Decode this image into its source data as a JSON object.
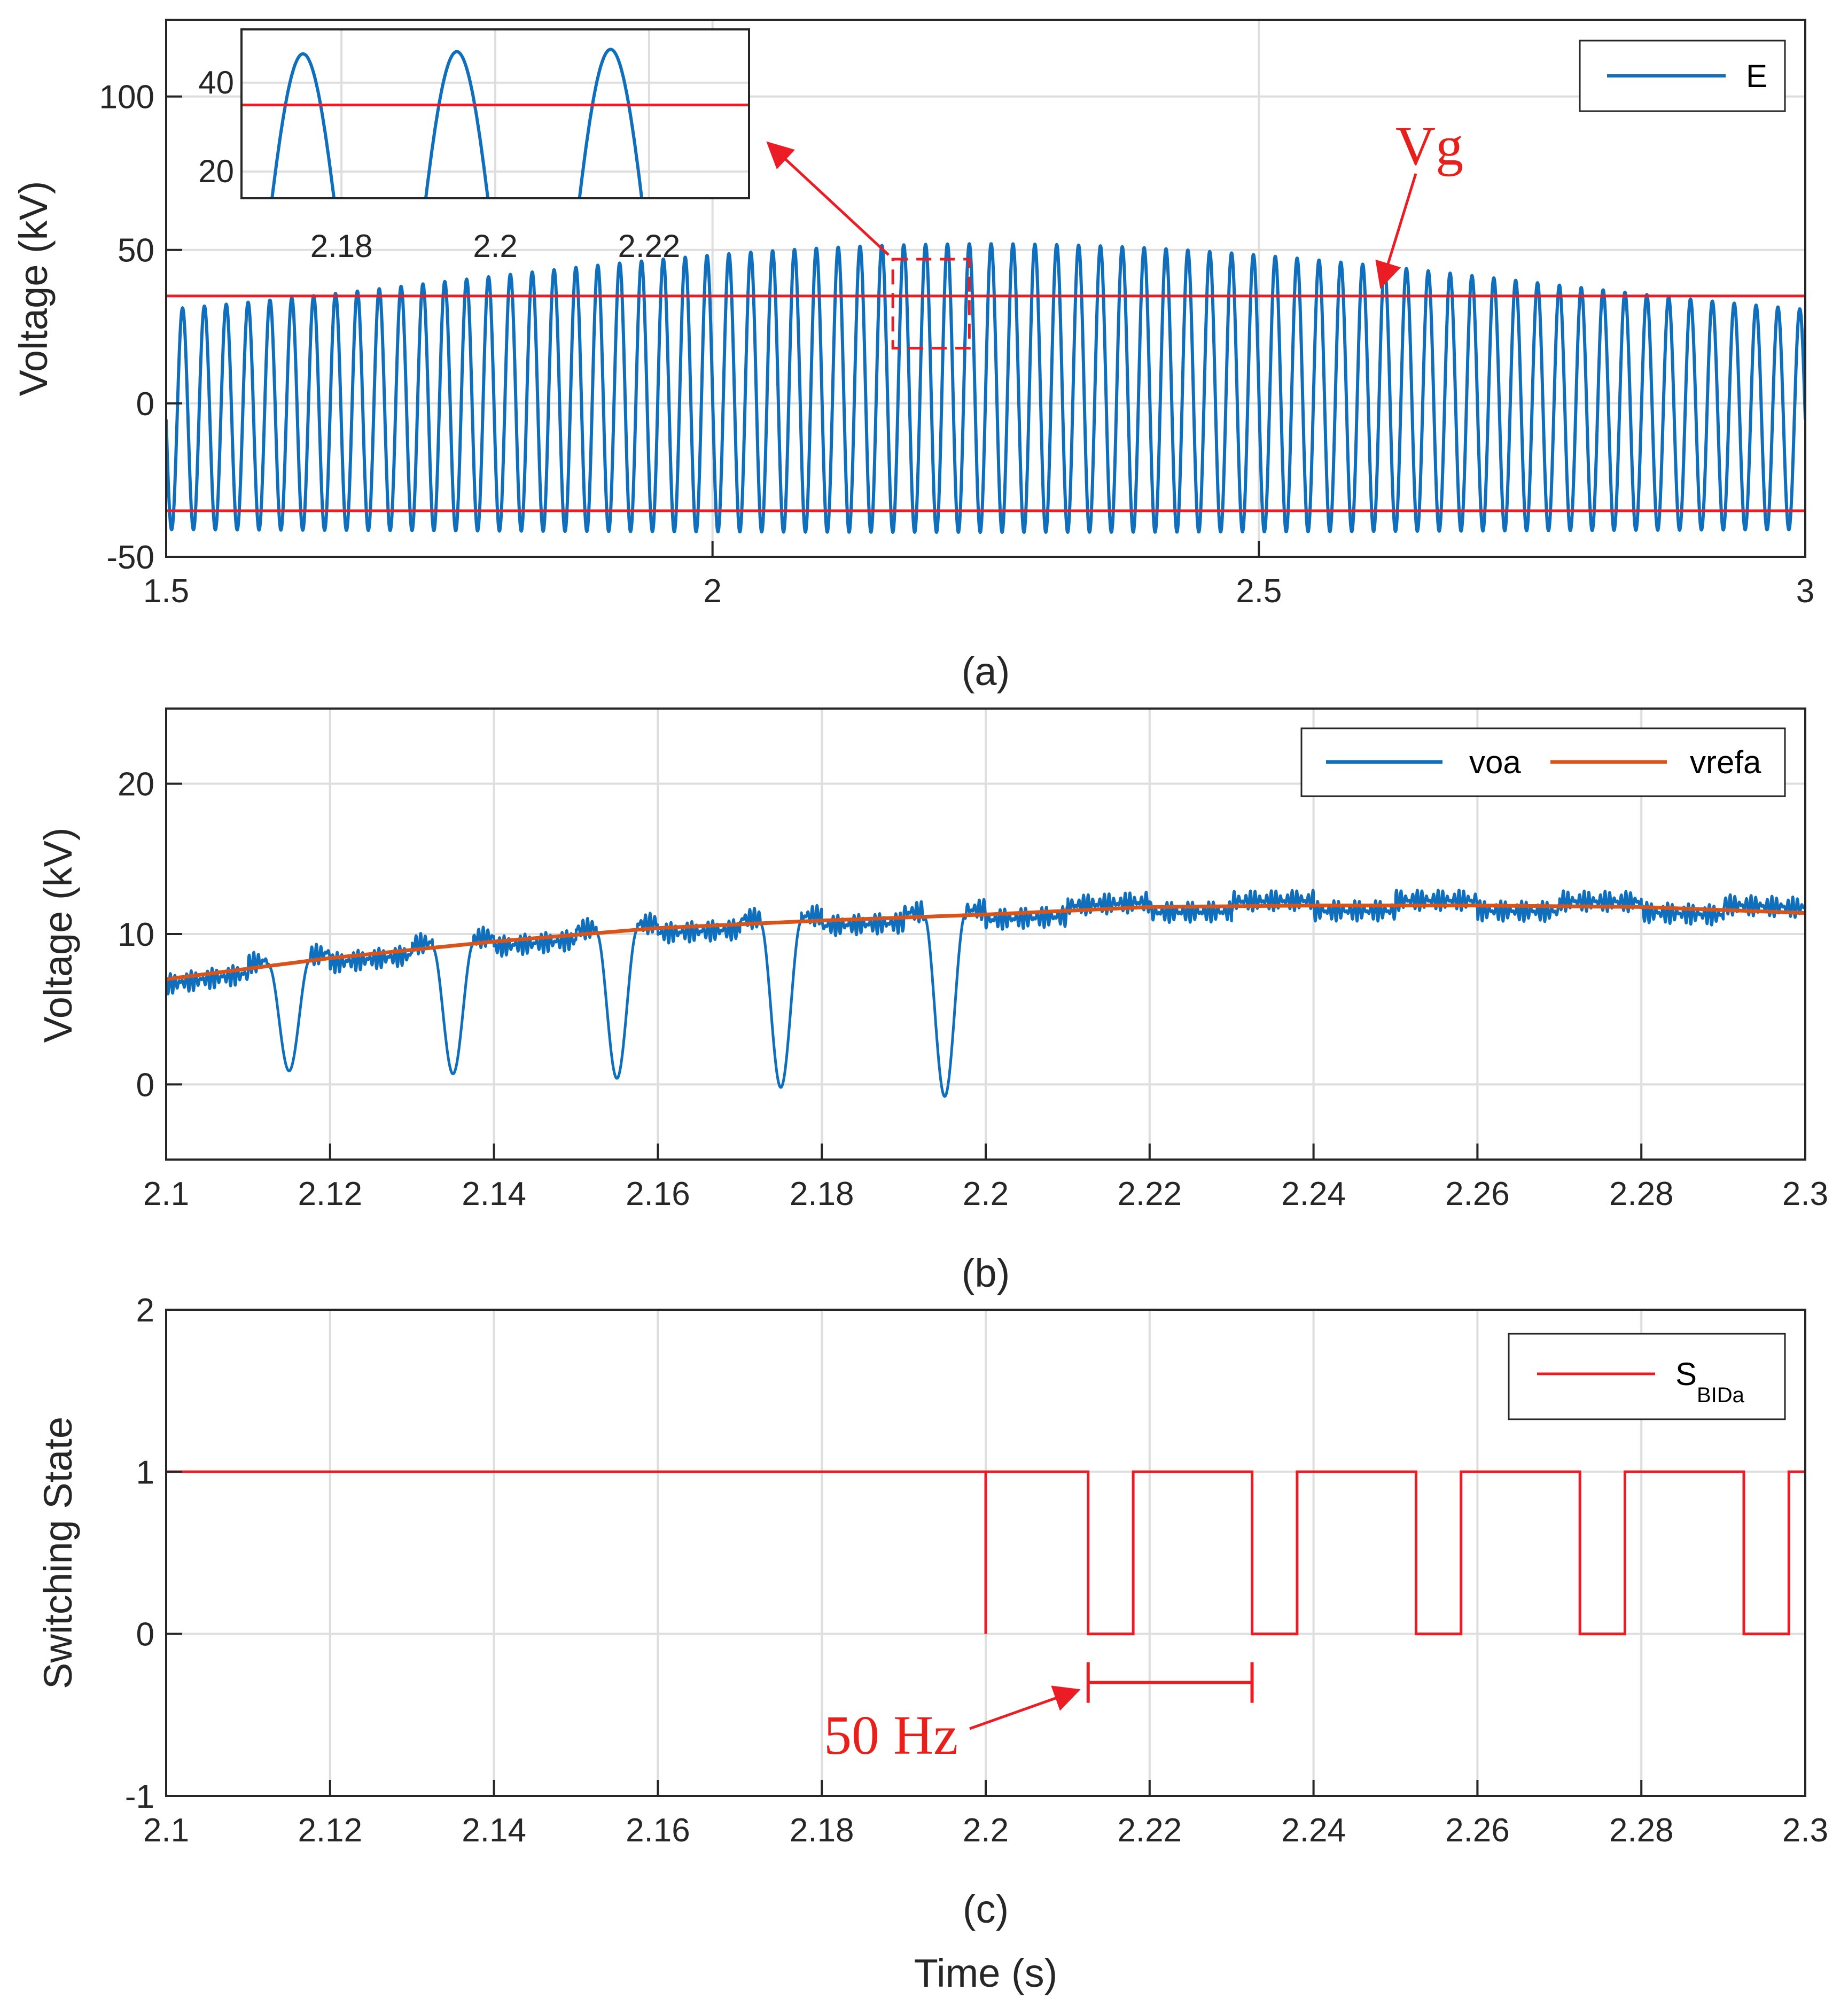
{
  "colors": {
    "blue": "#0f6fbd",
    "orange": "#d9541a",
    "red": "#ec1c24",
    "grid": "#dedede",
    "axis": "#262626"
  },
  "chart_data": [
    {
      "id": "a",
      "type": "line",
      "caption": "(a)",
      "ylabel": "Voltage (kV)",
      "xlim": [
        1.5,
        3
      ],
      "ylim": [
        -50,
        125
      ],
      "xticks": [
        1.5,
        2,
        2.5,
        3
      ],
      "xticklabels": [
        "1.5",
        "2",
        "2.5",
        "3"
      ],
      "yticks": [
        -50,
        0,
        50,
        100
      ],
      "yticklabels": [
        "-50",
        "0",
        "50",
        "100"
      ],
      "series": [
        {
          "name": "E",
          "color": "#0f6fbd",
          "description": "50 Hz oscillation, amplitude modulated 0.5 Hz",
          "frequency_hz": 50,
          "amplitude_kV_min": 34,
          "amplitude_kV_max": 47,
          "envelope_peak_time": 2.25,
          "offset_kV_min": -7,
          "offset_kV_max": 5
        },
        {
          "name": "Vg",
          "color": "#ec1c24",
          "levels_kV": [
            35,
            -35
          ]
        }
      ],
      "legend": [
        "E"
      ],
      "legend_position": "top-right",
      "annotations": {
        "vg_label": "Vg"
      },
      "inset": {
        "xlim": [
          2.167,
          2.233
        ],
        "ylim": [
          14,
          52
        ],
        "xticks": [
          2.18,
          2.2,
          2.22
        ],
        "xticklabels": [
          "2.18",
          "2.2",
          "2.22"
        ],
        "yticks": [
          20,
          40
        ],
        "yticklabels": [
          "20",
          "40"
        ],
        "peak_times": [
          2.175,
          2.195,
          2.215
        ],
        "peak_values": [
          46.5,
          47,
          47.5
        ],
        "red_level": 35
      },
      "zoom_box_xrange": [
        2.165,
        2.235
      ],
      "zoom_box_yrange": [
        18,
        47
      ]
    },
    {
      "id": "b",
      "type": "line",
      "caption": "(b)",
      "ylabel": "Voltage (kV)",
      "xlim": [
        2.1,
        2.3
      ],
      "ylim": [
        -5,
        25
      ],
      "xticks": [
        2.1,
        2.12,
        2.14,
        2.16,
        2.18,
        2.2,
        2.22,
        2.24,
        2.26,
        2.28,
        2.3
      ],
      "xticklabels": [
        "2.1",
        "2.12",
        "2.14",
        "2.16",
        "2.18",
        "2.2",
        "2.22",
        "2.24",
        "2.26",
        "2.28",
        "2.3"
      ],
      "yticks": [
        0,
        10,
        20
      ],
      "yticklabels": [
        "0",
        "10",
        "20"
      ],
      "series": [
        {
          "name": "voa",
          "color": "#0f6fbd",
          "dip_times": [
            2.115,
            2.135,
            2.155,
            2.175,
            2.195
          ],
          "dip_minima_kV": [
            0.9,
            0.7,
            0.4,
            -0.2,
            -0.8
          ]
        },
        {
          "name": "vrefa",
          "color": "#d9541a",
          "description": "0.5 Hz reference, peak about 11.9 kV at t = 2.25 s",
          "x": [
            2.1,
            2.12,
            2.14,
            2.16,
            2.18,
            2.2,
            2.22,
            2.24,
            2.26,
            2.28,
            2.3
          ],
          "y": [
            7.0,
            8.4,
            9.5,
            10.4,
            10.9,
            11.3,
            11.8,
            11.9,
            11.9,
            11.8,
            11.4
          ]
        }
      ],
      "legend": [
        "voa",
        "vrefa"
      ],
      "legend_position": "top-right"
    },
    {
      "id": "c",
      "type": "line",
      "caption": "(c)",
      "ylabel": "Switching State",
      "xlabel": "Time (s)",
      "xlim": [
        2.1,
        2.3
      ],
      "ylim": [
        -1,
        2
      ],
      "xticks": [
        2.1,
        2.12,
        2.14,
        2.16,
        2.18,
        2.2,
        2.22,
        2.24,
        2.26,
        2.28,
        2.3
      ],
      "xticklabels": [
        "2.1",
        "2.12",
        "2.14",
        "2.16",
        "2.18",
        "2.2",
        "2.22",
        "2.24",
        "2.26",
        "2.28",
        "2.3"
      ],
      "yticks": [
        -1,
        0,
        1,
        2
      ],
      "yticklabels": [
        "-1",
        "0",
        "1",
        "2"
      ],
      "series": [
        {
          "name": "S_BIDa",
          "color": "#ec1c24",
          "x": [
            2.1,
            2.2,
            2.2,
            2.2,
            2.2125,
            2.2125,
            2.218,
            2.218,
            2.2325,
            2.2325,
            2.238,
            2.238,
            2.2525,
            2.2525,
            2.258,
            2.258,
            2.2725,
            2.2725,
            2.278,
            2.278,
            2.2925,
            2.2925,
            2.298,
            2.298,
            2.3
          ],
          "y": [
            1,
            1,
            0,
            1,
            1,
            0,
            0,
            1,
            1,
            0,
            0,
            1,
            1,
            0,
            0,
            1,
            1,
            0,
            0,
            1,
            1,
            0,
            0,
            1,
            1
          ]
        }
      ],
      "legend_main": "S",
      "legend_sub": "BIDa",
      "legend_position": "top-right",
      "annotations": {
        "freq_label": "50 Hz",
        "marker_x": [
          2.2125,
          2.2325
        ],
        "marker_y": -0.3
      }
    }
  ]
}
